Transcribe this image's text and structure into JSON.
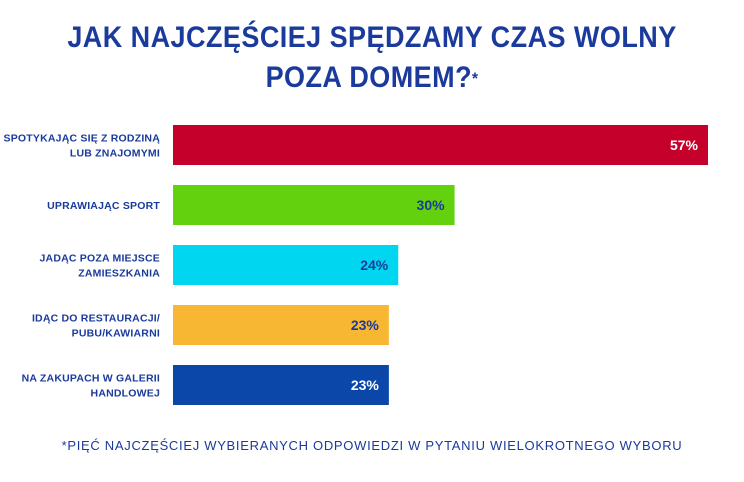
{
  "title_line1": "JAK NAJCZĘŚCIEJ SPĘDZAMY CZAS WOLNY",
  "title_line2": "POZA DOMEM?",
  "title_mark": "*",
  "footnote": "*PIĘĆ NAJCZĘŚCIEJ WYBIERANYCH ODPOWIEDZI W PYTANIU WIELOKROTNEGO WYBORU",
  "colors": {
    "title": "#1a3a9c",
    "label": "#1a3a9c",
    "bars": [
      "#c4002b",
      "#63d10d",
      "#00d6f0",
      "#f7b733",
      "#0a47a8"
    ],
    "value_text": [
      "#ffffff",
      "#1a3a9c",
      "#1a3a9c",
      "#1a3a9c",
      "#ffffff"
    ]
  },
  "chart_data": {
    "type": "bar",
    "orientation": "horizontal",
    "categories": [
      [
        "SPOTYKAJĄC SIĘ Z RODZINĄ",
        "LUB ZNAJOMYMI"
      ],
      [
        "UPRAWIAJĄC SPORT"
      ],
      [
        "JADĄC POZA MIEJSCE",
        "ZAMIESZKANIA"
      ],
      [
        "IDĄC DO RESTAURACJI/",
        "PUBU/KAWIARNI"
      ],
      [
        "NA ZAKUPACH W GALERII",
        "HANDLOWEJ"
      ]
    ],
    "values": [
      57,
      30,
      24,
      23,
      23
    ],
    "value_labels": [
      "57%",
      "30%",
      "24%",
      "23%",
      "23%"
    ],
    "xlim": [
      0,
      57
    ],
    "grid": false,
    "legend": "none"
  }
}
